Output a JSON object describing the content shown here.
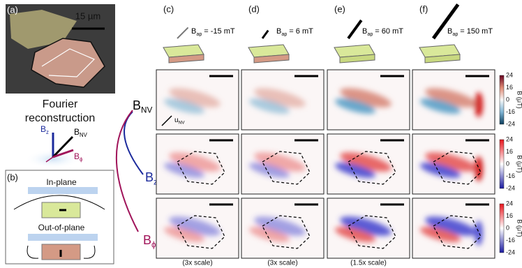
{
  "panel_a": {
    "label": "(a)",
    "scale_bar": "15 µm"
  },
  "reconstruction": {
    "line1": "Fourier",
    "line2": "reconstruction"
  },
  "panel_b": {
    "label": "(b)",
    "in_plane": "In-plane",
    "out_of_plane": "Out-of-plane"
  },
  "symbol": "B",
  "field_sub": "ap",
  "rows": [
    {
      "sub": "NV"
    },
    {
      "sub": "z"
    },
    {
      "sub": "ϕ"
    }
  ],
  "u_label": {
    "symbol": "u",
    "sub": "NV"
  },
  "columns": [
    {
      "label": "(c)",
      "field": "= -15 mT",
      "footer": "(3x scale)"
    },
    {
      "label": "(d)",
      "field": "= 6 mT",
      "footer": "(3x scale)"
    },
    {
      "label": "(e)",
      "field": "= 60 mT",
      "footer": "(1.5x scale)"
    },
    {
      "label": "(f)",
      "field": "= 150 mT"
    }
  ],
  "colorbar": {
    "label": "B (μT)",
    "ticks": [
      24,
      16,
      0,
      -16,
      -24
    ]
  }
}
